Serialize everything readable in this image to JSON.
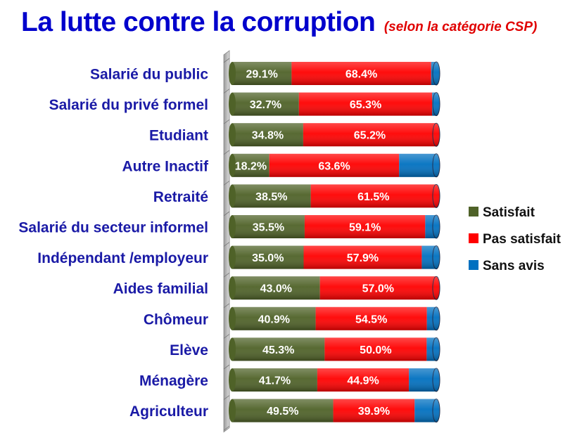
{
  "header": {
    "title": "La lutte contre la corruption",
    "subtitle": "(selon la catégorie CSP)"
  },
  "chart_data": {
    "type": "bar",
    "orientation": "horizontal",
    "stacked": "100%",
    "categories": [
      "Salarié du public",
      "Salarié du privé formel",
      "Etudiant",
      "Autre Inactif",
      "Retraité",
      "Salarié du secteur informel",
      "Indépendant /employeur",
      "Aides familial",
      "Chômeur",
      "Elève",
      "Ménagère",
      "Agriculteur"
    ],
    "series": [
      {
        "name": "Satisfait",
        "color": "#4f6228",
        "values": [
          29.1,
          32.7,
          34.8,
          18.2,
          38.5,
          35.5,
          35.0,
          43.0,
          40.9,
          45.3,
          41.7,
          49.5
        ],
        "labels": [
          "29.1%",
          "32.7%",
          "34.8%",
          "18.2%",
          "38.5%",
          "35.5%",
          "35.0%",
          "43.0%",
          "40.9%",
          "45.3%",
          "41.7%",
          "49.5%"
        ]
      },
      {
        "name": "Pas satisfait",
        "color": "#ff0000",
        "values": [
          68.4,
          65.3,
          65.2,
          63.6,
          61.5,
          59.1,
          57.9,
          57.0,
          54.5,
          50.0,
          44.9,
          39.9
        ],
        "labels": [
          "68.4%",
          "65.3%",
          "65.2%",
          "63.6%",
          "61.5%",
          "59.1%",
          "57.9%",
          "57.0%",
          "54.5%",
          "50.0%",
          "44.9%",
          "39.9%"
        ]
      },
      {
        "name": "Sans avis",
        "color": "#0070c0",
        "values": [
          2.5,
          2.0,
          0.0,
          18.2,
          0.0,
          5.4,
          7.1,
          0.0,
          4.6,
          4.7,
          13.4,
          10.6
        ],
        "labels": []
      }
    ],
    "xlim": [
      0,
      100
    ],
    "grid": false,
    "legend_position": "right"
  }
}
